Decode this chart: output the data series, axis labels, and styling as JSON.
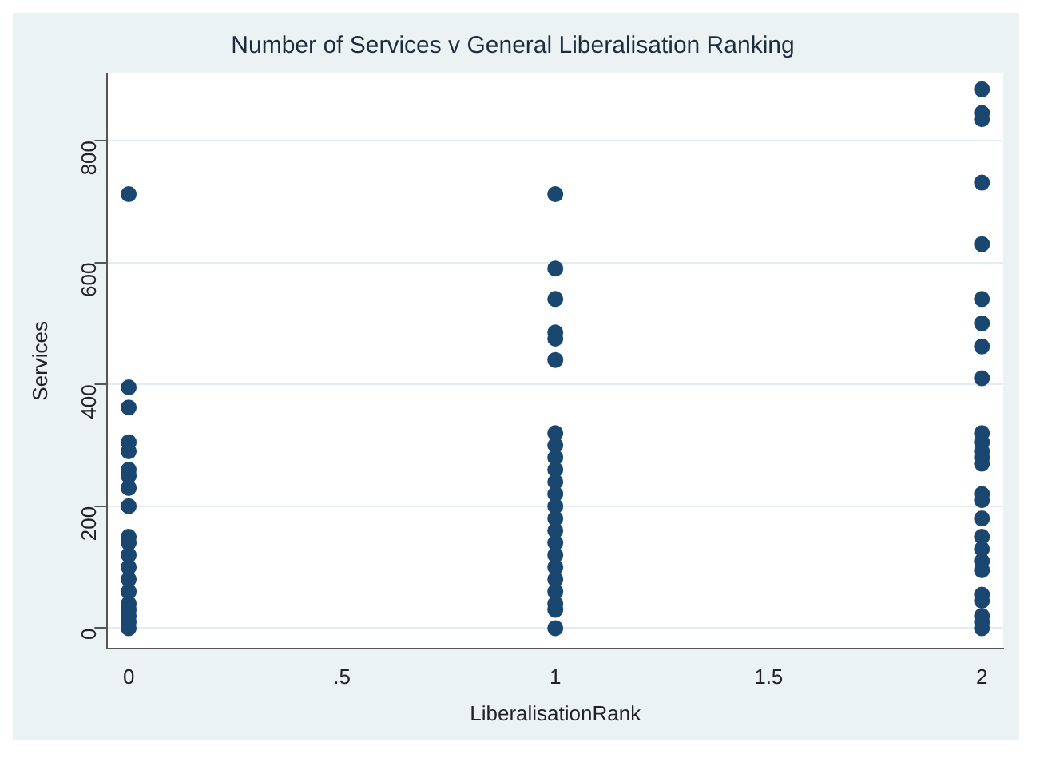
{
  "chart_data": {
    "type": "scatter",
    "title": "Number of Services v General Liberalisation Ranking",
    "xlabel": "LiberalisationRank",
    "ylabel": "Services",
    "x": [
      0,
      0,
      0,
      0,
      0,
      0,
      0,
      0,
      0,
      0,
      0,
      0,
      0,
      0,
      0,
      0,
      0,
      0,
      0,
      0,
      1,
      1,
      1,
      1,
      1,
      1,
      1,
      1,
      1,
      1,
      1,
      1,
      1,
      1,
      1,
      1,
      1,
      1,
      1,
      1,
      1,
      1,
      1,
      2,
      2,
      2,
      2,
      2,
      2,
      2,
      2,
      2,
      2,
      2,
      2,
      2,
      2,
      2,
      2,
      2,
      2,
      2,
      2,
      2,
      2,
      2,
      2,
      2,
      2
    ],
    "values": [
      712,
      395,
      362,
      305,
      290,
      260,
      250,
      230,
      200,
      150,
      140,
      120,
      100,
      80,
      60,
      40,
      30,
      20,
      10,
      0,
      712,
      590,
      540,
      485,
      475,
      440,
      320,
      300,
      280,
      260,
      240,
      220,
      200,
      180,
      160,
      140,
      120,
      100,
      80,
      60,
      40,
      30,
      0,
      884,
      845,
      835,
      731,
      630,
      540,
      500,
      462,
      410,
      320,
      305,
      290,
      280,
      270,
      220,
      210,
      180,
      150,
      130,
      110,
      95,
      55,
      45,
      20,
      10,
      0
    ],
    "color": "#1a476f",
    "marker": "circle",
    "xlim": [
      -0.05,
      2.05
    ],
    "ylim": [
      -33,
      910
    ],
    "xticks": [
      0,
      {
        "value": 0.5,
        "label": ".5"
      },
      1,
      1.5,
      2
    ],
    "yticks": [
      0,
      200,
      400,
      600,
      800
    ],
    "grid": "y",
    "legend": false
  }
}
